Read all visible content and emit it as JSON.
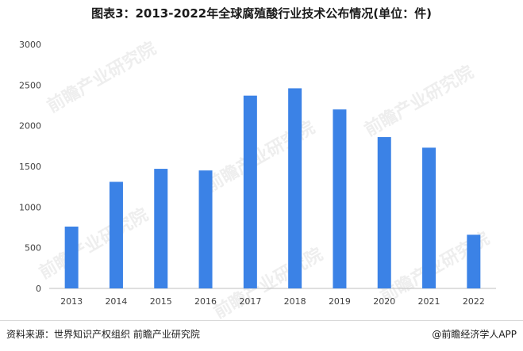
{
  "chart_data": {
    "type": "bar",
    "title": "图表3：2013-2022年全球腐殖酸行业技术公布情况(单位：件)",
    "categories": [
      "2013",
      "2014",
      "2015",
      "2016",
      "2017",
      "2018",
      "2019",
      "2020",
      "2021",
      "2022"
    ],
    "values": [
      760,
      1310,
      1470,
      1450,
      2370,
      2460,
      2200,
      1860,
      1730,
      660
    ],
    "ylim": [
      0,
      3000
    ],
    "yticks": [
      0,
      500,
      1000,
      1500,
      2000,
      2500,
      3000
    ],
    "xlabel": "",
    "ylabel": "",
    "grid": false,
    "bar_color": "#3b82e6"
  },
  "footer": {
    "source": "资料来源：世界知识产权组织 前瞻产业研究院",
    "brand": "@前瞻经济学人APP"
  },
  "watermark": "前瞻产业研究院"
}
